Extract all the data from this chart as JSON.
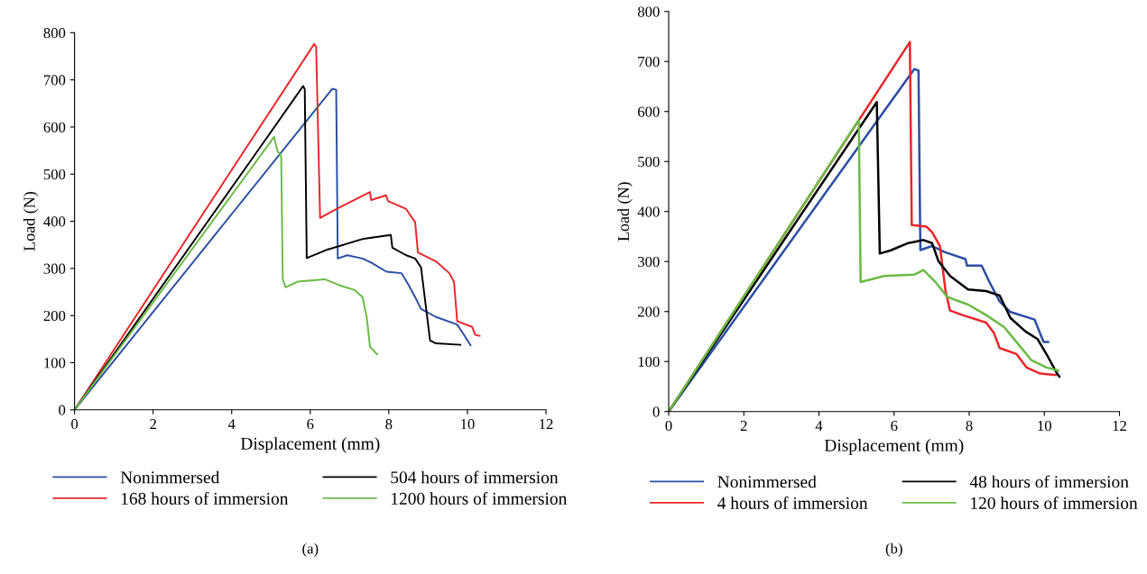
{
  "chart_data": [
    {
      "type": "line",
      "xlabel": "Displacement (mm)",
      "ylabel": "Load (N)",
      "xlim": [
        0,
        12
      ],
      "ylim": [
        0,
        800
      ],
      "xticks": [
        0,
        2,
        4,
        6,
        8,
        10,
        12
      ],
      "yticks": [
        0,
        100,
        200,
        300,
        400,
        500,
        600,
        700,
        800
      ],
      "grid": false,
      "legend": "bottom",
      "marker": "none",
      "line_style": "solid",
      "annotations": [
        "(a)"
      ],
      "series": [
        {
          "name": "Nonimmersed",
          "color": "#2b4ea2",
          "x": [
            0,
            6.56,
            6.66,
            6.7,
            6.94,
            7.33,
            7.56,
            7.94,
            8.32,
            8.51,
            8.67,
            8.82,
            9.2,
            9.74,
            9.89,
            10.08
          ],
          "values": [
            0,
            681,
            679,
            321,
            328,
            321,
            312,
            293,
            290,
            264,
            239,
            214,
            197,
            181,
            162,
            137
          ]
        },
        {
          "name": "168 hours of immersion",
          "color": "#e8262a",
          "x": [
            0,
            6.1,
            6.15,
            6.25,
            6.67,
            7.52,
            7.55,
            7.93,
            7.98,
            8.44,
            8.67,
            8.74,
            9.2,
            9.54,
            9.66,
            9.74,
            10.12,
            10.2,
            10.31
          ],
          "values": [
            0,
            776,
            770,
            407,
            426,
            462,
            445,
            455,
            443,
            426,
            398,
            334,
            315,
            290,
            271,
            188,
            176,
            159,
            157
          ]
        },
        {
          "name": "504 hours of immersion",
          "color": "#000000",
          "x": [
            0,
            4.53,
            5.82,
            5.86,
            5.91,
            6.44,
            7.36,
            8.05,
            8.09,
            8.44,
            8.67,
            8.82,
            9.05,
            9.2,
            9.82
          ],
          "values": [
            0,
            534,
            687,
            680,
            322,
            340,
            363,
            371,
            344,
            328,
            321,
            302,
            147,
            141,
            138
          ]
        },
        {
          "name": "1200 hours of immersion",
          "color": "#6abb45",
          "x": [
            0,
            5.08,
            5.16,
            5.26,
            5.3,
            5.37,
            5.68,
            6.37,
            6.75,
            7.13,
            7.33,
            7.44,
            7.52,
            7.7
          ],
          "values": [
            0,
            579,
            550,
            538,
            277,
            260,
            272,
            277,
            264,
            254,
            239,
            195,
            134,
            118
          ]
        }
      ]
    },
    {
      "type": "line",
      "xlabel": "Displacement (mm)",
      "ylabel": "Load (N)",
      "xlim": [
        0,
        12
      ],
      "ylim": [
        0,
        800
      ],
      "xticks": [
        0,
        2,
        4,
        6,
        8,
        10,
        12
      ],
      "yticks": [
        0,
        100,
        200,
        300,
        400,
        500,
        600,
        700,
        800
      ],
      "grid": false,
      "legend": "bottom",
      "marker": "none",
      "line_style": "solid",
      "annotations": [
        "(b)"
      ],
      "series": [
        {
          "name": "Nonimmersed",
          "color": "#2b4ea2",
          "x": [
            0,
            6.54,
            6.65,
            6.7,
            7.01,
            7.34,
            7.9,
            7.94,
            8.33,
            8.54,
            8.81,
            9.1,
            9.74,
            9.98,
            10.1
          ],
          "values": [
            0,
            685,
            682,
            323,
            331,
            319,
            305,
            292,
            292,
            259,
            220,
            199,
            184,
            139,
            139
          ]
        },
        {
          "name": "4 hours of immersion",
          "color": "#e8262a",
          "x": [
            0,
            6.42,
            6.47,
            6.86,
            7.02,
            7.22,
            7.37,
            7.49,
            7.82,
            8.45,
            8.66,
            8.81,
            9.26,
            9.53,
            9.89,
            10.3
          ],
          "values": [
            0,
            739,
            373,
            370,
            358,
            331,
            241,
            202,
            193,
            178,
            157,
            127,
            115,
            88,
            76,
            73
          ]
        },
        {
          "name": "48 hours of immersion",
          "color": "#000000",
          "x": [
            0,
            5.54,
            5.62,
            5.9,
            6.38,
            6.78,
            7.01,
            7.18,
            7.49,
            7.97,
            8.45,
            8.81,
            9.1,
            9.5,
            9.82,
            10.1,
            10.34,
            10.4
          ],
          "values": [
            0,
            619,
            316,
            322,
            337,
            343,
            337,
            301,
            271,
            244,
            241,
            232,
            187,
            160,
            145,
            109,
            76,
            70
          ]
        },
        {
          "name": "120 hours of immersion",
          "color": "#6abb45",
          "x": [
            0,
            5.06,
            5.11,
            5.74,
            6.54,
            6.78,
            7.1,
            7.42,
            7.97,
            8.45,
            8.93,
            9.26,
            9.65,
            10.06,
            10.37
          ],
          "values": [
            0,
            583,
            259,
            271,
            274,
            283,
            259,
            229,
            214,
            193,
            169,
            139,
            103,
            88,
            82
          ]
        }
      ]
    }
  ]
}
